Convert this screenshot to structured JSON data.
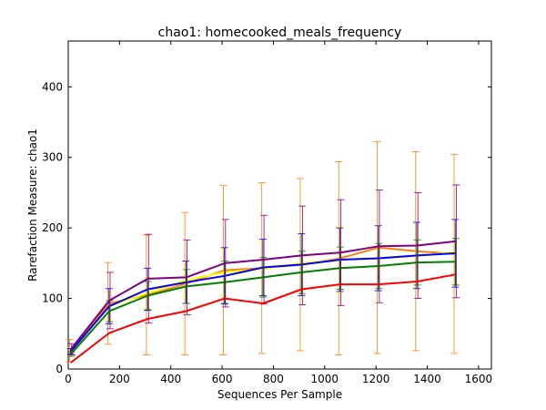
{
  "chart_data": {
    "type": "line",
    "title": "chao1: homecooked_meals_frequency",
    "xlabel": "Sequences Per Sample",
    "ylabel": "Rarefaction Measure: chao1",
    "xlim": [
      0,
      1650
    ],
    "ylim": [
      0,
      465
    ],
    "xticks": [
      0,
      200,
      400,
      600,
      800,
      1000,
      1200,
      1400,
      1600
    ],
    "yticks": [
      0,
      100,
      200,
      300,
      400
    ],
    "grid": false,
    "legend": "none",
    "x": [
      10,
      160,
      310,
      460,
      610,
      760,
      910,
      1060,
      1210,
      1360,
      1510
    ],
    "series": [
      {
        "color": "#ff7f0e",
        "values": [
          26,
          93,
          105,
          121,
          140,
          143,
          148,
          157,
          172,
          167,
          163
        ],
        "err": [
          16,
          58,
          85,
          101,
          120,
          121,
          122,
          137,
          150,
          141,
          141
        ]
      },
      {
        "color": "#ffff00",
        "values": [
          24,
          89,
          108,
          126,
          137,
          142,
          150,
          155,
          157,
          160,
          166
        ],
        "err": [
          6,
          20,
          22,
          25,
          33,
          38,
          40,
          47,
          46,
          47,
          46
        ]
      },
      {
        "color": "#0000ff",
        "values": [
          25,
          89,
          113,
          123,
          132,
          144,
          148,
          155,
          157,
          161,
          164
        ],
        "err": [
          4,
          25,
          30,
          30,
          40,
          40,
          44,
          45,
          46,
          47,
          48
        ]
      },
      {
        "color": "#008000",
        "values": [
          21,
          82,
          104,
          117,
          123,
          130,
          137,
          143,
          146,
          151,
          152
        ],
        "err": [
          3,
          15,
          20,
          24,
          30,
          28,
          30,
          30,
          32,
          32,
          33
        ]
      },
      {
        "color": "#800080",
        "values": [
          28,
          97,
          128,
          130,
          150,
          155,
          161,
          165,
          174,
          175,
          181
        ],
        "err": [
          8,
          40,
          63,
          53,
          62,
          63,
          70,
          75,
          80,
          75,
          80
        ]
      },
      {
        "color": "#ff0000",
        "values": [
          9,
          51,
          71,
          82,
          100,
          93,
          113,
          120,
          120,
          124,
          134
        ],
        "err": [
          0,
          0,
          0,
          0,
          0,
          0,
          0,
          0,
          0,
          0,
          0
        ]
      }
    ]
  }
}
